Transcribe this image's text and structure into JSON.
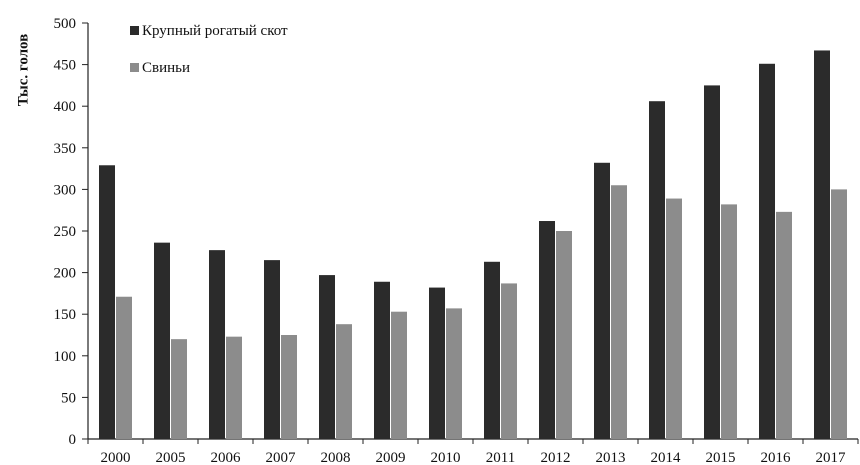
{
  "chart_data": {
    "type": "bar",
    "ylabel": "Тыс. голов",
    "xlabel": "",
    "categories": [
      "2000",
      "2005",
      "2006",
      "2007",
      "2008",
      "2009",
      "2010",
      "2011",
      "2012",
      "2013",
      "2014",
      "2015",
      "2016",
      "2017"
    ],
    "ylim": [
      0,
      500
    ],
    "yticks": [
      0,
      50,
      100,
      150,
      200,
      250,
      300,
      350,
      400,
      450,
      500
    ],
    "grid": false,
    "legend_position": "top-left",
    "series": [
      {
        "name": "Крупный рогатый скот",
        "color": "#2b2b2b",
        "values": [
          329,
          236,
          227,
          215,
          197,
          189,
          182,
          213,
          262,
          332,
          406,
          425,
          451,
          467
        ]
      },
      {
        "name": "Свиньи",
        "color": "#8c8c8c",
        "values": [
          171,
          120,
          123,
          125,
          138,
          153,
          157,
          187,
          250,
          305,
          289,
          282,
          273,
          300
        ]
      }
    ]
  }
}
